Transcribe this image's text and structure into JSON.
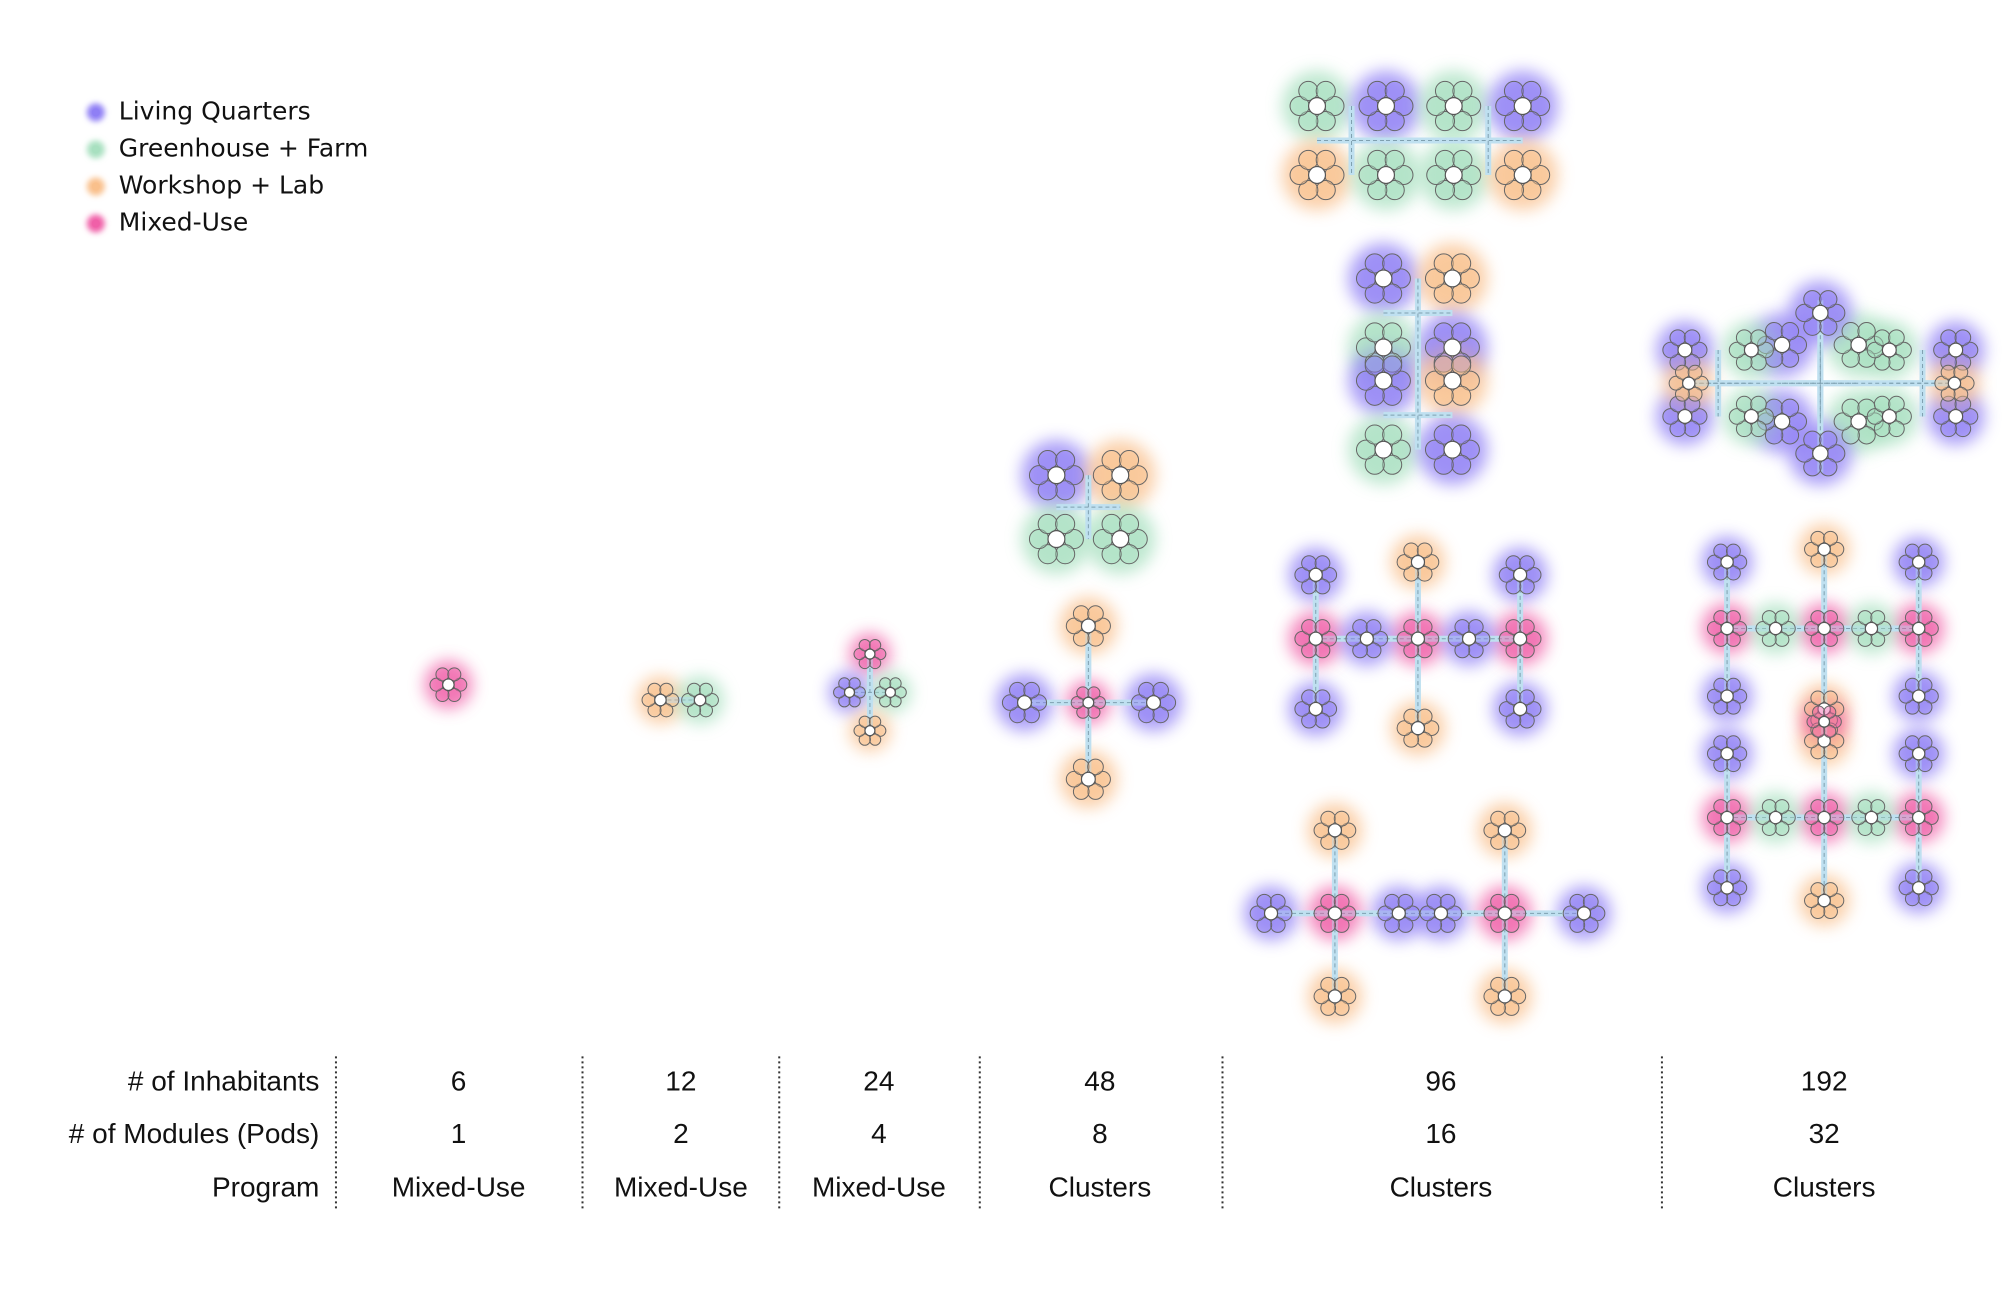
{
  "legend": [
    {
      "label": "Living Quarters",
      "color": "#8f7ff5"
    },
    {
      "label": "Greenhouse + Farm",
      "color": "#a8e0c0"
    },
    {
      "label": "Workshop + Lab",
      "color": "#f9c08c"
    },
    {
      "label": "Mixed-Use",
      "color": "#f060a8"
    }
  ],
  "table": {
    "row_labels": [
      "# of Inhabitants",
      "# of Modules (Pods)",
      "Program"
    ],
    "columns": [
      {
        "inhabitants": 6,
        "modules": 1,
        "program": "Mixed-Use"
      },
      {
        "inhabitants": 12,
        "modules": 2,
        "program": "Mixed-Use"
      },
      {
        "inhabitants": 24,
        "modules": 4,
        "program": "Mixed-Use"
      },
      {
        "inhabitants": 48,
        "modules": 8,
        "program": "Clusters"
      },
      {
        "inhabitants": 96,
        "modules": 16,
        "program": "Clusters"
      },
      {
        "inhabitants": 192,
        "modules": 32,
        "program": "Clusters"
      }
    ]
  }
}
